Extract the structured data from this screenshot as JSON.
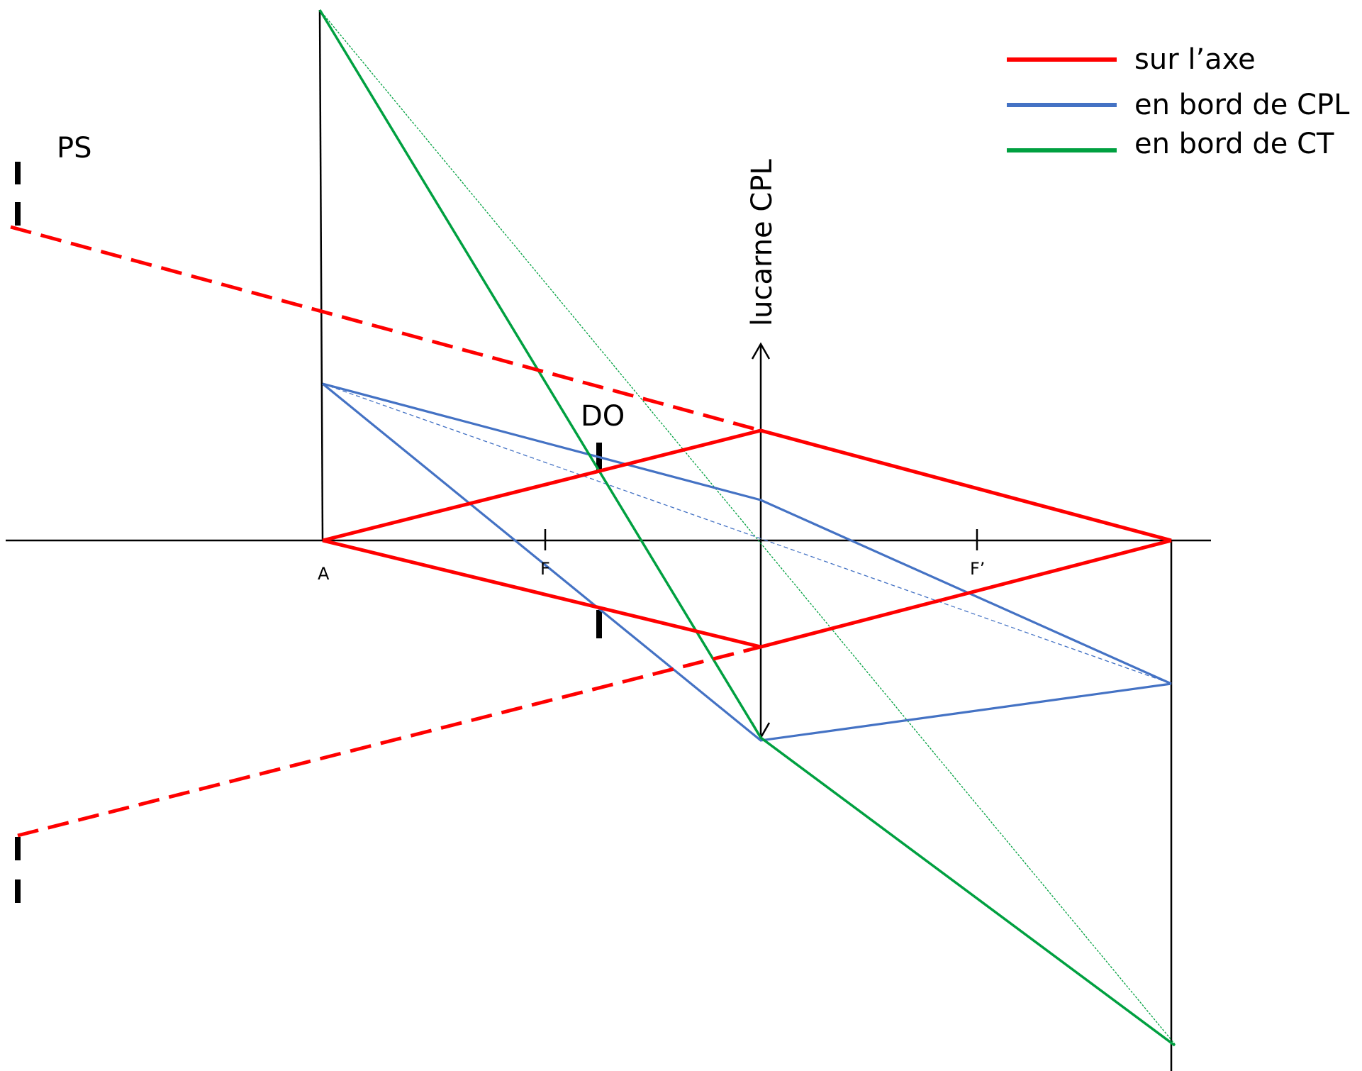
{
  "labels": {
    "ps": "PS",
    "do": "DO",
    "lens": "lucarne CPL",
    "point_a": "A",
    "point_f": "F",
    "point_f_prime": "F’"
  },
  "legend": [
    {
      "label": "sur l’axe",
      "color": "#ff0000",
      "icon": "red-line"
    },
    {
      "label": "en bord de CPL",
      "color": "#4472c4",
      "icon": "blue-line"
    },
    {
      "label": "en bord de CT",
      "color": "#00a040",
      "icon": "green-line"
    }
  ],
  "colors": {
    "axis": "#000000",
    "on_axis": "#ff0000",
    "edge_cpl": "#4472c4",
    "edge_ct": "#00a040"
  }
}
